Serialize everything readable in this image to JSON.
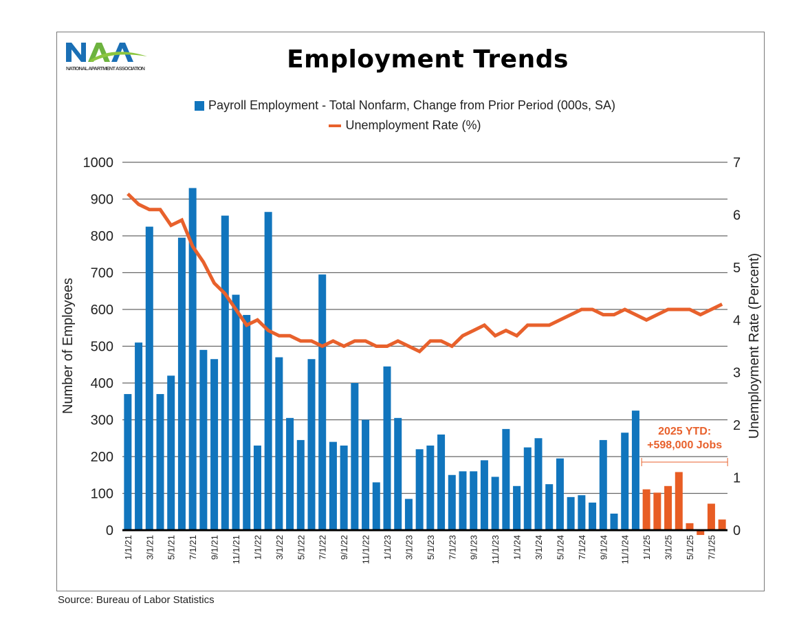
{
  "logo": {
    "text": "NAA",
    "subtitle": "NATIONAL APARTMENT ASSOCIATION"
  },
  "source": "Source: Bureau of Labor Statistics",
  "colors": {
    "bars": "#1175BD",
    "bars_2025": "#E85D24",
    "line": "#E8612C"
  },
  "chart_data": {
    "type": "bar+line",
    "title": "Employment Trends",
    "legend": [
      "Payroll Employment - Total Nonfarm, Change from Prior Period (000s, SA)",
      "Unemployment Rate (%)"
    ],
    "legend_placement": "top-center",
    "ylabel": "Number of Employees",
    "y2label": "Unemployment Rate (Percent)",
    "ylim": [
      0,
      1000
    ],
    "yticks": [
      0,
      100,
      200,
      300,
      400,
      500,
      600,
      700,
      800,
      900,
      1000
    ],
    "y2lim": [
      0,
      7
    ],
    "y2ticks": [
      0,
      1,
      2,
      3,
      4,
      5,
      6,
      7
    ],
    "grid": true,
    "categories": [
      "1/1/21",
      "2/1/21",
      "3/1/21",
      "4/1/21",
      "5/1/21",
      "6/1/21",
      "7/1/21",
      "8/1/21",
      "9/1/21",
      "10/1/21",
      "11/1/21",
      "12/1/21",
      "1/1/22",
      "2/1/22",
      "3/1/22",
      "4/1/22",
      "5/1/22",
      "6/1/22",
      "7/1/22",
      "8/1/22",
      "9/1/22",
      "10/1/22",
      "11/1/22",
      "12/1/22",
      "1/1/23",
      "2/1/23",
      "3/1/23",
      "4/1/23",
      "5/1/23",
      "6/1/23",
      "7/1/23",
      "8/1/23",
      "9/1/23",
      "10/1/23",
      "11/1/23",
      "12/1/23",
      "1/1/24",
      "2/1/24",
      "3/1/24",
      "4/1/24",
      "5/1/24",
      "6/1/24",
      "7/1/24",
      "8/1/24",
      "9/1/24",
      "10/1/24",
      "11/1/24",
      "12/1/24",
      "1/1/25",
      "2/1/25",
      "3/1/25",
      "4/1/25",
      "5/1/25",
      "6/1/25",
      "7/1/25",
      "8/1/25"
    ],
    "series": [
      {
        "name": "Payroll Employment - Total Nonfarm, Change from Prior Period (000s, SA)",
        "type": "bar",
        "axis": "left",
        "values": [
          370,
          510,
          825,
          370,
          420,
          795,
          930,
          490,
          465,
          855,
          640,
          585,
          230,
          865,
          470,
          305,
          245,
          465,
          695,
          240,
          230,
          400,
          300,
          130,
          445,
          305,
          85,
          220,
          230,
          260,
          150,
          160,
          160,
          190,
          145,
          275,
          120,
          225,
          250,
          125,
          195,
          90,
          95,
          75,
          245,
          45,
          265,
          325,
          111,
          102,
          120,
          158,
          19,
          -13,
          72,
          29
        ]
      },
      {
        "name": "Unemployment Rate (%)",
        "type": "line",
        "axis": "right",
        "values": [
          6.4,
          6.2,
          6.1,
          6.1,
          5.8,
          5.9,
          5.4,
          5.1,
          4.7,
          4.5,
          4.2,
          3.9,
          4.0,
          3.8,
          3.7,
          3.7,
          3.6,
          3.6,
          3.5,
          3.6,
          3.5,
          3.6,
          3.6,
          3.5,
          3.5,
          3.6,
          3.5,
          3.4,
          3.6,
          3.6,
          3.5,
          3.7,
          3.8,
          3.9,
          3.7,
          3.8,
          3.7,
          3.9,
          3.9,
          3.9,
          4.0,
          4.1,
          4.2,
          4.2,
          4.1,
          4.1,
          4.2,
          4.1,
          4.0,
          4.1,
          4.2,
          4.2,
          4.2,
          4.1,
          4.2,
          4.3
        ]
      }
    ],
    "annotations": [
      {
        "line1": "2025 YTD:",
        "line2": "+598,000 Jobs",
        "span": [
          "1/1/25",
          "8/1/25"
        ]
      }
    ]
  }
}
